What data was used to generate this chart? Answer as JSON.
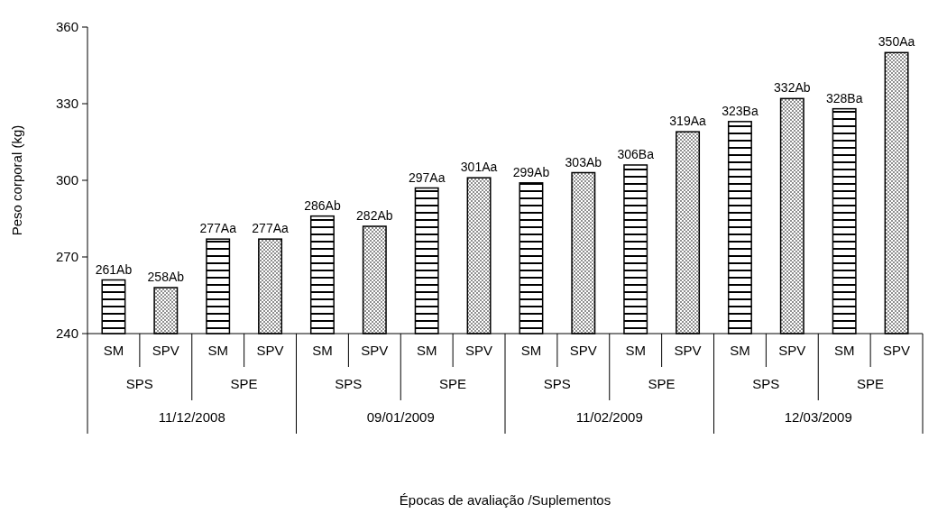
{
  "chart_data": {
    "type": "bar",
    "ylabel": "Peso corporal (kg)",
    "categories": [
      "SM",
      "SPV",
      "SM",
      "SPV",
      "SM",
      "SPV",
      "SM",
      "SPV",
      "SM",
      "SPV",
      "SM",
      "SPV",
      "SM",
      "SPV",
      "SM",
      "SPV"
    ],
    "values": [
      261,
      258,
      277,
      277,
      286,
      282,
      297,
      301,
      299,
      303,
      306,
      319,
      323,
      332,
      328,
      350
    ],
    "value_labels": [
      "261Ab",
      "258Ab",
      "277Aa",
      "277Aa",
      "286Ab",
      "282Ab",
      "297Aa",
      "301Aa",
      "299Ab",
      "303Ab",
      "306Ba",
      "319Aa",
      "323Ba",
      "332Ab",
      "328Ba",
      "350Aa"
    ],
    "color": "#000000",
    "annotations": [
      "SPS",
      "SPE",
      "SPS",
      "SPE",
      "SPS",
      "SPE",
      "SPS",
      "SPE",
      "11/12/2008",
      "09/01/2009",
      "11/02/2009",
      "12/03/2009",
      "Épocas de avaliação /Suplementos"
    ],
    "ylim": [
      240,
      360
    ],
    "yticks": [
      240,
      270,
      300,
      330,
      360
    ]
  }
}
